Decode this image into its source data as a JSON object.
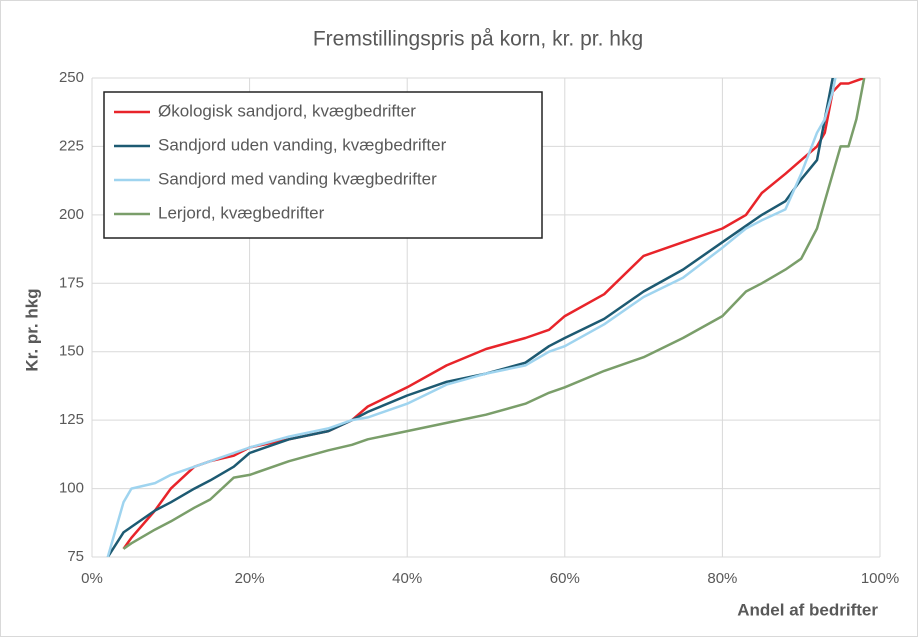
{
  "chart_data": {
    "type": "line",
    "title": "Fremstillingspris på korn, kr. pr. hkg",
    "x_label": "Andel af bedrifter",
    "y_label": "Kr. pr. hkg",
    "x": [
      2,
      4,
      5,
      8,
      10,
      13,
      15,
      18,
      20,
      25,
      30,
      33,
      35,
      40,
      45,
      50,
      55,
      58,
      60,
      65,
      70,
      75,
      80,
      83,
      85,
      88,
      90,
      92,
      93,
      94,
      95,
      96,
      97,
      98
    ],
    "series": [
      {
        "name": "Økologisk sandjord, kvægbedrifter",
        "color": "#e8242a",
        "values": [
          null,
          78,
          82,
          92,
          100,
          108,
          110,
          112,
          115,
          118,
          121,
          125,
          130,
          137,
          145,
          151,
          155,
          158,
          163,
          171,
          185,
          190,
          195,
          200,
          208,
          215,
          220,
          225,
          230,
          245,
          248,
          248,
          249,
          250
        ]
      },
      {
        "name": "Sandjord uden vanding, kvægbedrifter",
        "color": "#1d5a72",
        "values": [
          75,
          84,
          86,
          92,
          95,
          100,
          103,
          108,
          113,
          118,
          121,
          125,
          128,
          134,
          139,
          142,
          146,
          152,
          155,
          162,
          172,
          180,
          190,
          196,
          200,
          205,
          213,
          220,
          235,
          250,
          260,
          null,
          null,
          null
        ]
      },
      {
        "name": "Sandjord med vanding kvægbedrifter",
        "color": "#9fd4ef",
        "values": [
          75,
          95,
          100,
          102,
          105,
          108,
          110,
          113,
          115,
          119,
          122,
          125,
          126,
          131,
          138,
          142,
          145,
          150,
          152,
          160,
          170,
          177,
          188,
          195,
          198,
          202,
          215,
          230,
          235,
          245,
          260,
          null,
          null,
          null
        ]
      },
      {
        "name": "Lerjord, kvægbedrifter",
        "color": "#7a9e6a",
        "values": [
          null,
          78,
          80,
          85,
          88,
          93,
          96,
          104,
          105,
          110,
          114,
          116,
          118,
          121,
          124,
          127,
          131,
          135,
          137,
          143,
          148,
          155,
          163,
          172,
          175,
          180,
          184,
          195,
          205,
          215,
          225,
          225,
          235,
          250
        ]
      }
    ],
    "xlim": [
      0,
      100
    ],
    "xticks": [
      {
        "value": 0,
        "label": "0%"
      },
      {
        "value": 20,
        "label": "20%"
      },
      {
        "value": 40,
        "label": "40%"
      },
      {
        "value": 60,
        "label": "60%"
      },
      {
        "value": 80,
        "label": "80%"
      },
      {
        "value": 100,
        "label": "100%"
      }
    ],
    "ylim": [
      75,
      250
    ],
    "yticks": [
      75,
      100,
      125,
      150,
      175,
      200,
      225,
      250
    ],
    "grid": true,
    "legend": "upper left"
  }
}
